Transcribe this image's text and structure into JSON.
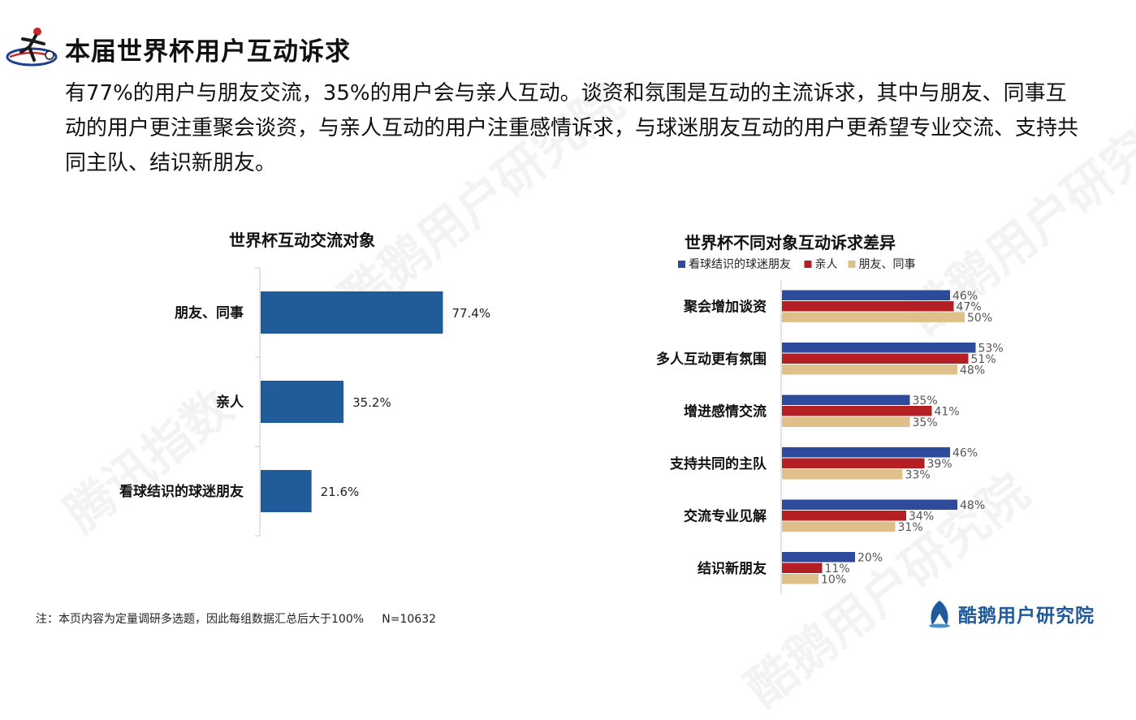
{
  "header": {
    "title": "本届世界杯用户互动诉求",
    "summary": "有77%的用户与朋友交流，35%的用户会与亲人互动。谈资和氛围是互动的主流诉求，其中与朋友、同事互动的用户更注重聚会谈资，与亲人互动的用户注重感情诉求，与球迷朋友互动的用户更希望专业交流、支持共同主队、结识新朋友。"
  },
  "chart_data": [
    {
      "type": "bar",
      "orientation": "horizontal",
      "title": "世界杯互动交流对象",
      "categories": [
        "朋友、同事",
        "亲人",
        "看球结识的球迷朋友"
      ],
      "values": [
        77.4,
        35.2,
        21.6
      ],
      "labels": [
        "77.4%",
        "35.2%",
        "21.6%"
      ],
      "color": "#1f5c99",
      "xlim": [
        0,
        100
      ]
    },
    {
      "type": "bar",
      "orientation": "horizontal",
      "title": "世界杯不同对象互动诉求差异",
      "legend_position": "top",
      "categories": [
        "聚会增加谈资",
        "多人互动更有氛围",
        "增进感情交流",
        "支持共同的主队",
        "交流专业见解",
        "结识新朋友"
      ],
      "series": [
        {
          "name": "看球结识的球迷朋友",
          "color": "#2e4a9b",
          "values": [
            46,
            53,
            35,
            46,
            48,
            20
          ]
        },
        {
          "name": "亲人",
          "color": "#b41f24",
          "values": [
            47,
            51,
            41,
            39,
            34,
            11
          ]
        },
        {
          "name": "朋友、同事",
          "color": "#dfc08a",
          "values": [
            50,
            48,
            35,
            33,
            31,
            10
          ]
        }
      ],
      "xlim": [
        0,
        100
      ],
      "unit": "%"
    }
  ],
  "footer": {
    "note": "注：本页内容为定量调研多选题，因此每组数据汇总后大于100%     N=10632",
    "brand": "酷鹅用户研究院"
  },
  "watermarks": [
    "腾讯指数",
    "酷鹅用户研究院"
  ]
}
